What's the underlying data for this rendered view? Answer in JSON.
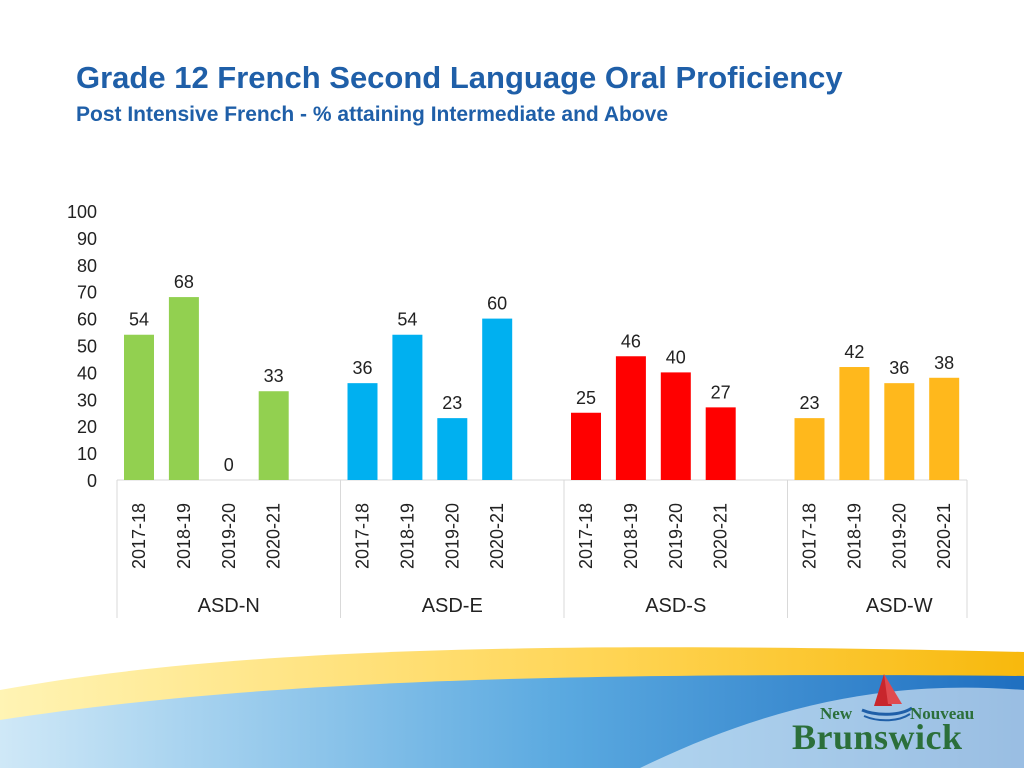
{
  "header": {
    "title": "Grade 12 French Second Language Oral Proficiency",
    "subtitle": "Post Intensive French - % attaining Intermediate and Above"
  },
  "logo": {
    "line1_left": "New",
    "line1_right": "Nouveau",
    "line2": "Brunswick"
  },
  "chart_data": {
    "type": "bar",
    "title": "",
    "xlabel": "",
    "ylabel": "",
    "ylim": [
      0,
      100
    ],
    "yticks": [
      0,
      10,
      20,
      30,
      40,
      50,
      60,
      70,
      80,
      90,
      100
    ],
    "grid": false,
    "legend": "none",
    "years": [
      "2017-18",
      "2018-19",
      "2019-20",
      "2020-21"
    ],
    "groups": [
      {
        "name": "ASD-N",
        "color": "#92d050",
        "values": [
          54,
          68,
          0,
          33
        ]
      },
      {
        "name": "ASD-E",
        "color": "#00b0f0",
        "values": [
          36,
          54,
          23,
          60
        ]
      },
      {
        "name": "ASD-S",
        "color": "#ff0000",
        "values": [
          25,
          46,
          40,
          27
        ]
      },
      {
        "name": "ASD-W",
        "color": "#ffb81c",
        "values": [
          23,
          42,
          36,
          38
        ]
      }
    ]
  }
}
